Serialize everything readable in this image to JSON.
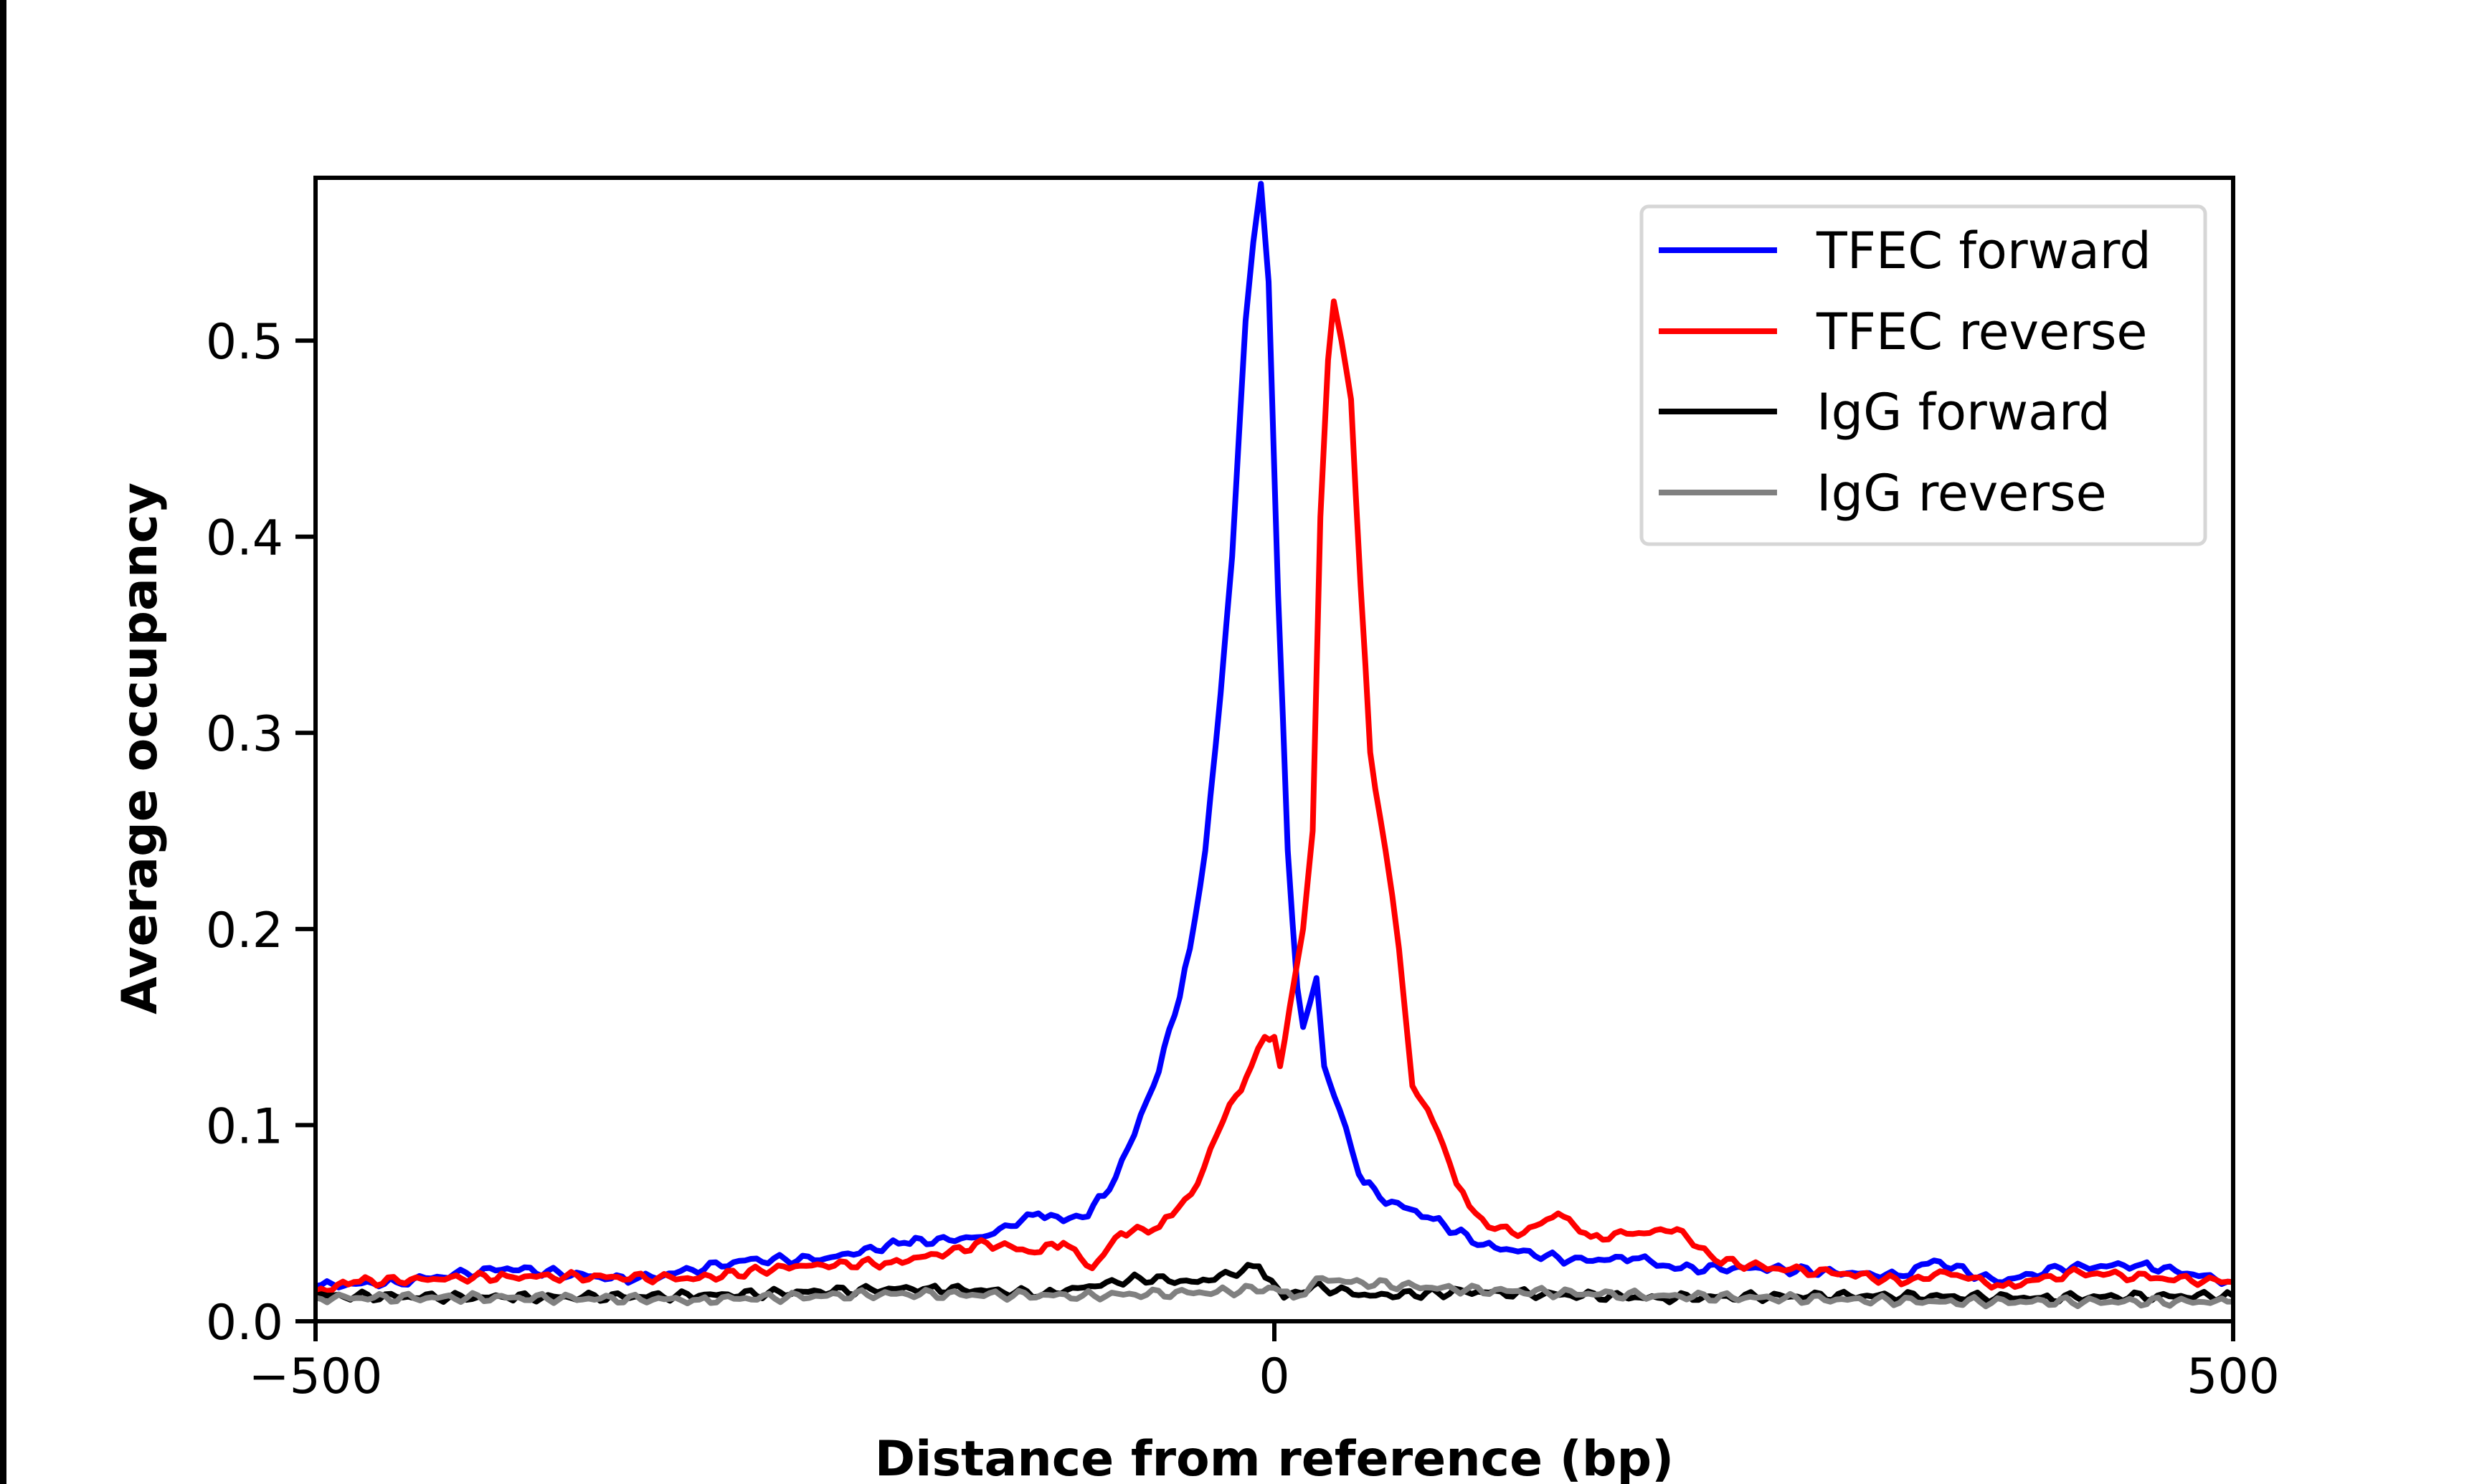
{
  "chart_data": {
    "type": "line",
    "xlabel": "Distance from reference (bp)",
    "ylabel": "Average occupancy",
    "xlim": [
      -500,
      500
    ],
    "ylim": [
      0,
      0.583
    ],
    "xticks": [
      -500,
      0,
      500
    ],
    "xtick_labels": [
      "−500",
      "0",
      "500"
    ],
    "yticks": [
      0.0,
      0.1,
      0.2,
      0.3,
      0.4,
      0.5
    ],
    "ytick_labels": [
      "0.0",
      "0.1",
      "0.2",
      "0.3",
      "0.4",
      "0.5"
    ],
    "grid": false,
    "legend_position": "top-right",
    "series": [
      {
        "name": "TFEC forward",
        "color": "#0000ff",
        "x": [
          -500,
          -458,
          -400,
          -334,
          -276,
          -234,
          -193,
          -152,
          -123,
          -110,
          -100,
          -86,
          -73,
          -63,
          -52,
          -44,
          -36,
          -28,
          -22,
          -15,
          -11,
          -7,
          -3,
          2,
          7,
          12,
          15,
          22,
          26,
          34,
          44,
          55,
          80,
          109,
          154,
          187,
          212,
          254,
          328,
          344,
          377,
          410,
          452,
          500
        ],
        "y": [
          0.018,
          0.02,
          0.027,
          0.021,
          0.031,
          0.032,
          0.04,
          0.043,
          0.055,
          0.051,
          0.053,
          0.067,
          0.095,
          0.12,
          0.156,
          0.19,
          0.24,
          0.32,
          0.39,
          0.51,
          0.55,
          0.58,
          0.53,
          0.37,
          0.24,
          0.17,
          0.15,
          0.175,
          0.13,
          0.108,
          0.075,
          0.063,
          0.053,
          0.039,
          0.031,
          0.032,
          0.027,
          0.027,
          0.023,
          0.031,
          0.02,
          0.027,
          0.029,
          0.02
        ]
      },
      {
        "name": "TFEC reverse",
        "color": "#ff0000",
        "x": [
          -500,
          -480,
          -400,
          -300,
          -250,
          -200,
          -170,
          -150,
          -125,
          -110,
          -95,
          -80,
          -60,
          -50,
          -40,
          -30,
          -20,
          -12,
          -5,
          0,
          3,
          8,
          15,
          20,
          24,
          28,
          31,
          35,
          40,
          45,
          50,
          58,
          65,
          72,
          80,
          88,
          95,
          105,
          115,
          130,
          148,
          165,
          190,
          210,
          230,
          260,
          300,
          330,
          350,
          380,
          420,
          460,
          500
        ],
        "y": [
          0.015,
          0.02,
          0.023,
          0.022,
          0.028,
          0.03,
          0.035,
          0.04,
          0.035,
          0.04,
          0.027,
          0.045,
          0.048,
          0.058,
          0.07,
          0.095,
          0.115,
          0.13,
          0.145,
          0.145,
          0.13,
          0.16,
          0.2,
          0.25,
          0.41,
          0.49,
          0.52,
          0.5,
          0.47,
          0.375,
          0.29,
          0.24,
          0.19,
          0.12,
          0.108,
          0.09,
          0.07,
          0.055,
          0.047,
          0.045,
          0.055,
          0.043,
          0.045,
          0.047,
          0.031,
          0.027,
          0.024,
          0.02,
          0.025,
          0.018,
          0.025,
          0.022,
          0.02
        ]
      },
      {
        "name": "IgG forward",
        "color": "#000000",
        "x": [
          -500,
          -400,
          -300,
          -180,
          -120,
          -70,
          -40,
          -8,
          5,
          20,
          50,
          100,
          200,
          300,
          400,
          500
        ],
        "y": [
          0.013,
          0.012,
          0.013,
          0.017,
          0.014,
          0.022,
          0.02,
          0.028,
          0.012,
          0.018,
          0.013,
          0.015,
          0.012,
          0.013,
          0.012,
          0.013
        ]
      },
      {
        "name": "IgG reverse",
        "color": "#808080",
        "x": [
          -500,
          -400,
          -300,
          -200,
          -100,
          -30,
          0,
          10,
          25,
          40,
          100,
          200,
          350,
          500
        ],
        "y": [
          0.012,
          0.012,
          0.011,
          0.014,
          0.013,
          0.015,
          0.017,
          0.012,
          0.022,
          0.02,
          0.016,
          0.013,
          0.01,
          0.01
        ]
      }
    ]
  }
}
